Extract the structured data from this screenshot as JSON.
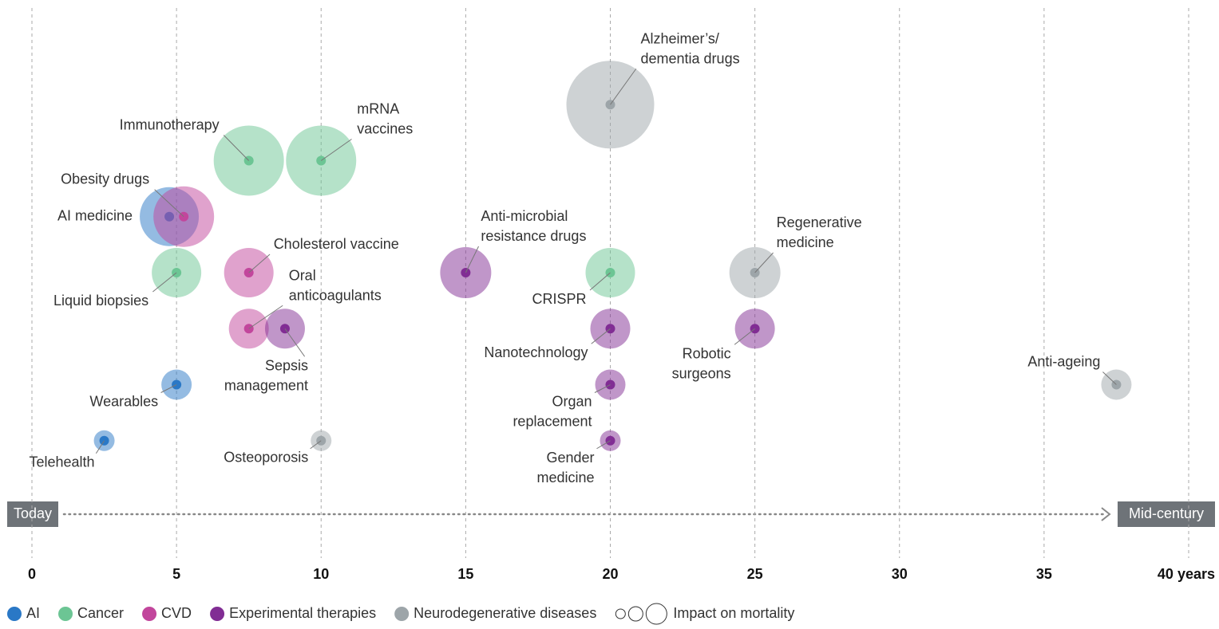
{
  "chart_data": {
    "type": "bubble",
    "xlim": [
      0,
      40
    ],
    "xticks": [
      0,
      5,
      10,
      15,
      20,
      25,
      30,
      35,
      {
        "value": 40,
        "label": "40 years"
      }
    ],
    "ylim": [
      0,
      8
    ],
    "grid": true,
    "series": [
      {
        "name": "AI",
        "color": "#2a78c6",
        "x": [
          4.75,
          5,
          2.5
        ],
        "y": [
          5,
          2,
          1
        ],
        "sizes": [
          37,
          19,
          13
        ],
        "labels": [
          "AI medicine",
          "Wearables",
          "Telehealth"
        ]
      },
      {
        "name": "Cancer",
        "color": "#6cc594",
        "x": [
          7.5,
          10,
          5,
          20
        ],
        "y": [
          6,
          6,
          4,
          4
        ],
        "sizes": [
          44,
          44,
          31,
          31
        ],
        "labels": [
          "Immunotherapy",
          "mRNA\nvaccines",
          "Liquid biopsies",
          "CRISPR"
        ]
      },
      {
        "name": "CVD",
        "color": "#c2469c",
        "x": [
          5.25,
          7.5,
          7.5
        ],
        "y": [
          5,
          4,
          3
        ],
        "sizes": [
          38,
          31,
          25
        ],
        "labels": [
          "Obesity drugs",
          "Cholesterol vaccine",
          "Oral\nanticoagulants"
        ]
      },
      {
        "name": "Experimental therapies",
        "color": "#812d94",
        "x": [
          8.75,
          15,
          20,
          20,
          20,
          25
        ],
        "y": [
          3,
          4,
          3,
          2,
          1,
          3
        ],
        "sizes": [
          25,
          32,
          25,
          19,
          13,
          25
        ],
        "labels": [
          "Sepsis\nmanagement",
          "Anti-microbial\nresistance drugs",
          "Nanotechnology",
          "Organ\nreplacement",
          "Gender\nmedicine",
          "Robotic\nsurgeons"
        ]
      },
      {
        "name": "Neurodegenerative diseases",
        "color": "#9da5a9",
        "x": [
          20,
          10,
          25,
          37.5
        ],
        "y": [
          7,
          1,
          4,
          2
        ],
        "sizes": [
          55,
          13,
          32,
          19
        ],
        "labels": [
          "Alzheimer’s/\ndementia drugs",
          "Osteoporosis",
          "Regenerative\nmedicine",
          "Anti-ageing"
        ]
      }
    ],
    "size_legend": "Impact on mortality",
    "timeline": {
      "start": "Today",
      "end": "Mid-century"
    }
  }
}
